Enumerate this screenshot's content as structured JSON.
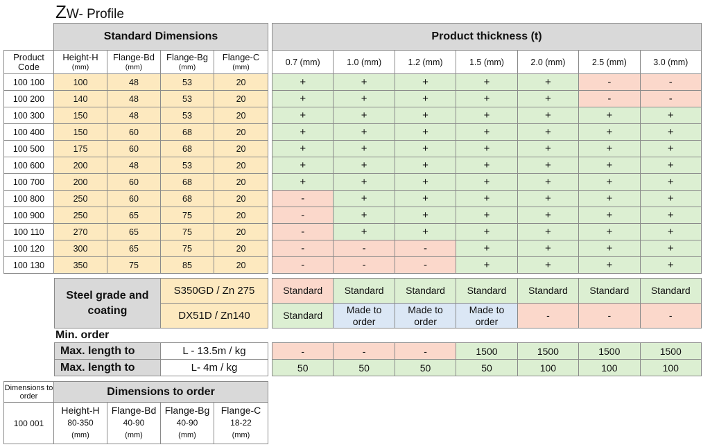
{
  "title": {
    "main": "Z",
    "rest": "W- Profile"
  },
  "standard": {
    "header": "Standard Dimensions",
    "col_code": "Product Code",
    "cols": [
      {
        "name": "Height-H",
        "unit": "(mm)"
      },
      {
        "name": "Flange-Bd",
        "unit": "(mm)"
      },
      {
        "name": "Flange-Bg",
        "unit": "(mm)"
      },
      {
        "name": "Flange-C",
        "unit": "(mm)"
      }
    ]
  },
  "thickness": {
    "header": "Product thickness (t)",
    "cols": [
      "0.7 (mm)",
      "1.0 (mm)",
      "1.2 (mm)",
      "1.5 (mm)",
      "2.0 (mm)",
      "2.5 (mm)",
      "3.0 (mm)"
    ]
  },
  "rows": [
    {
      "code": "100 100",
      "h": "100",
      "bd": "48",
      "bg": "53",
      "c": "20",
      "t": [
        "+",
        "+",
        "+",
        "+",
        "+",
        "-",
        "-"
      ]
    },
    {
      "code": "100 200",
      "h": "140",
      "bd": "48",
      "bg": "53",
      "c": "20",
      "t": [
        "+",
        "+",
        "+",
        "+",
        "+",
        "-",
        "-"
      ]
    },
    {
      "code": "100 300",
      "h": "150",
      "bd": "48",
      "bg": "53",
      "c": "20",
      "t": [
        "+",
        "+",
        "+",
        "+",
        "+",
        "+",
        "+"
      ]
    },
    {
      "code": "100 400",
      "h": "150",
      "bd": "60",
      "bg": "68",
      "c": "20",
      "t": [
        "+",
        "+",
        "+",
        "+",
        "+",
        "+",
        "+"
      ]
    },
    {
      "code": "100 500",
      "h": "175",
      "bd": "60",
      "bg": "68",
      "c": "20",
      "t": [
        "+",
        "+",
        "+",
        "+",
        "+",
        "+",
        "+"
      ]
    },
    {
      "code": "100 600",
      "h": "200",
      "bd": "48",
      "bg": "53",
      "c": "20",
      "t": [
        "+",
        "+",
        "+",
        "+",
        "+",
        "+",
        "+"
      ]
    },
    {
      "code": "100 700",
      "h": "200",
      "bd": "60",
      "bg": "68",
      "c": "20",
      "t": [
        "+",
        "+",
        "+",
        "+",
        "+",
        "+",
        "+"
      ]
    },
    {
      "code": "100 800",
      "h": "250",
      "bd": "60",
      "bg": "68",
      "c": "20",
      "t": [
        "-",
        "+",
        "+",
        "+",
        "+",
        "+",
        "+"
      ]
    },
    {
      "code": "100 900",
      "h": "250",
      "bd": "65",
      "bg": "75",
      "c": "20",
      "t": [
        "-",
        "+",
        "+",
        "+",
        "+",
        "+",
        "+"
      ]
    },
    {
      "code": "100 110",
      "h": "270",
      "bd": "65",
      "bg": "75",
      "c": "20",
      "t": [
        "-",
        "+",
        "+",
        "+",
        "+",
        "+",
        "+"
      ]
    },
    {
      "code": "100 120",
      "h": "300",
      "bd": "65",
      "bg": "75",
      "c": "20",
      "t": [
        "-",
        "-",
        "-",
        "+",
        "+",
        "+",
        "+"
      ]
    },
    {
      "code": "100 130",
      "h": "350",
      "bd": "75",
      "bg": "85",
      "c": "20",
      "t": [
        "-",
        "-",
        "-",
        "+",
        "+",
        "+",
        "+"
      ]
    }
  ],
  "steel": {
    "label": "Steel grade and coating",
    "grades": [
      {
        "name": "S350GD  / Zn 275",
        "values": [
          "Standard",
          "Standard",
          "Standard",
          "Standard",
          "Standard",
          "Standard",
          "Standard"
        ],
        "colors": [
          "r",
          "g",
          "g",
          "g",
          "g",
          "g",
          "g"
        ]
      },
      {
        "name": "DX51D  / Zn140",
        "values": [
          "Standard",
          "Made to order",
          "Made to order",
          "Made to order",
          "-",
          "-",
          "-"
        ],
        "colors": [
          "g",
          "b",
          "b",
          "b",
          "r",
          "r",
          "r"
        ]
      }
    ]
  },
  "min_order": {
    "label": "Min. order",
    "rows": [
      {
        "label": "Max. length to",
        "spec": "L - 13.5m / kg",
        "values": [
          "-",
          "-",
          "-",
          "1500",
          "1500",
          "1500",
          "1500"
        ],
        "colors": [
          "r",
          "r",
          "r",
          "g",
          "g",
          "g",
          "g"
        ]
      },
      {
        "label": "Max. length to",
        "spec": "L- 4m / kg",
        "values": [
          "50",
          "50",
          "50",
          "50",
          "100",
          "100",
          "100"
        ],
        "colors": [
          "g",
          "g",
          "g",
          "g",
          "g",
          "g",
          "g"
        ]
      }
    ]
  },
  "order": {
    "header": "Dimensions to order",
    "code_label": "Dimensions to order",
    "code": "100 001",
    "cols": [
      {
        "name": "Height-H",
        "range": "80-350",
        "unit": "(mm)"
      },
      {
        "name": "Flange-Bd",
        "range": "40-90",
        "unit": "(mm)"
      },
      {
        "name": "Flange-Bg",
        "range": "40-90",
        "unit": "(mm)"
      },
      {
        "name": "Flange-C",
        "range": "18-22",
        "unit": "(mm)"
      }
    ]
  },
  "colors": {
    "yellow": "#fde9bf",
    "green": "#dcefd2",
    "red": "#fbd8cb",
    "blue": "#dbe7f5",
    "header": "#d9d9d9"
  }
}
